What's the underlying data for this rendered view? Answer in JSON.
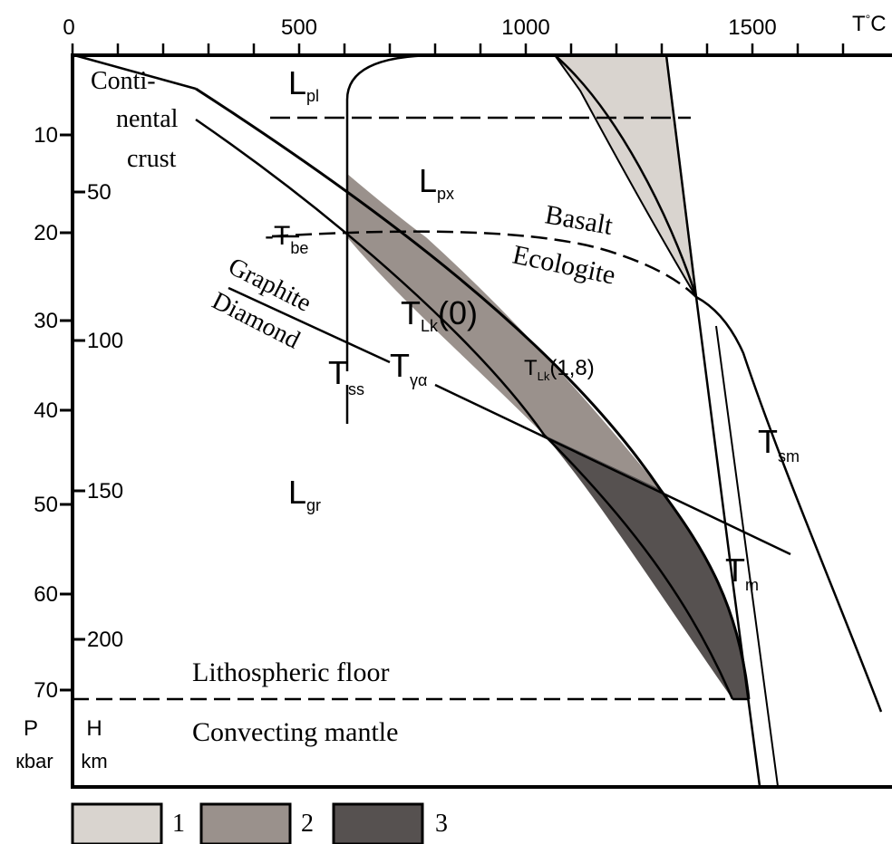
{
  "temperature_axis": {
    "ticks": [
      "0",
      "500",
      "1000",
      "1500"
    ],
    "unit_main": "T",
    "unit_sup": "°",
    "unit_end": "C"
  },
  "pressure_axis": {
    "ticks": [
      "10",
      "20",
      "30",
      "40",
      "50",
      "60",
      "70"
    ],
    "label": "P",
    "unit": "кbar"
  },
  "depth_axis": {
    "ticks": [
      "50",
      "100",
      "150",
      "200"
    ],
    "label": "H",
    "unit": "km"
  },
  "region_labels": {
    "crust_line1": "Conti-",
    "crust_line2": "nental",
    "crust_line3": "crust",
    "l_pl": "L",
    "l_pl_sub": "pl",
    "l_px": "L",
    "l_px_sub": "px",
    "l_gr": "L",
    "l_gr_sub": "gr",
    "lithospheric_floor": "Lithospheric floor",
    "convecting_mantle": "Convecting mantle"
  },
  "curve_labels": {
    "t_be": "-T",
    "t_be_sub": "be",
    "basalt": "Basalt",
    "ecologite": "Ecologite",
    "graphite": "Graphite",
    "diamond": "Diamond",
    "t_lk0": "T",
    "t_lk0_sub": "Lk",
    "t_lk0_arg": "(0)",
    "t_lk18": "T",
    "t_lk18_sub": "Lk",
    "t_lk18_arg": "(1,8)",
    "t_ss": "T",
    "t_ss_sub": "ss",
    "t_ga": "T",
    "t_ga_sub": "γα",
    "t_sm": "T",
    "t_sm_sub": "sm",
    "t_m": "T",
    "t_m_sub": "m"
  },
  "legend": [
    {
      "label": "1",
      "color": "#d9d4cf"
    },
    {
      "label": "2",
      "color": "#9a918c"
    },
    {
      "label": "3",
      "color": "#565150"
    }
  ]
}
